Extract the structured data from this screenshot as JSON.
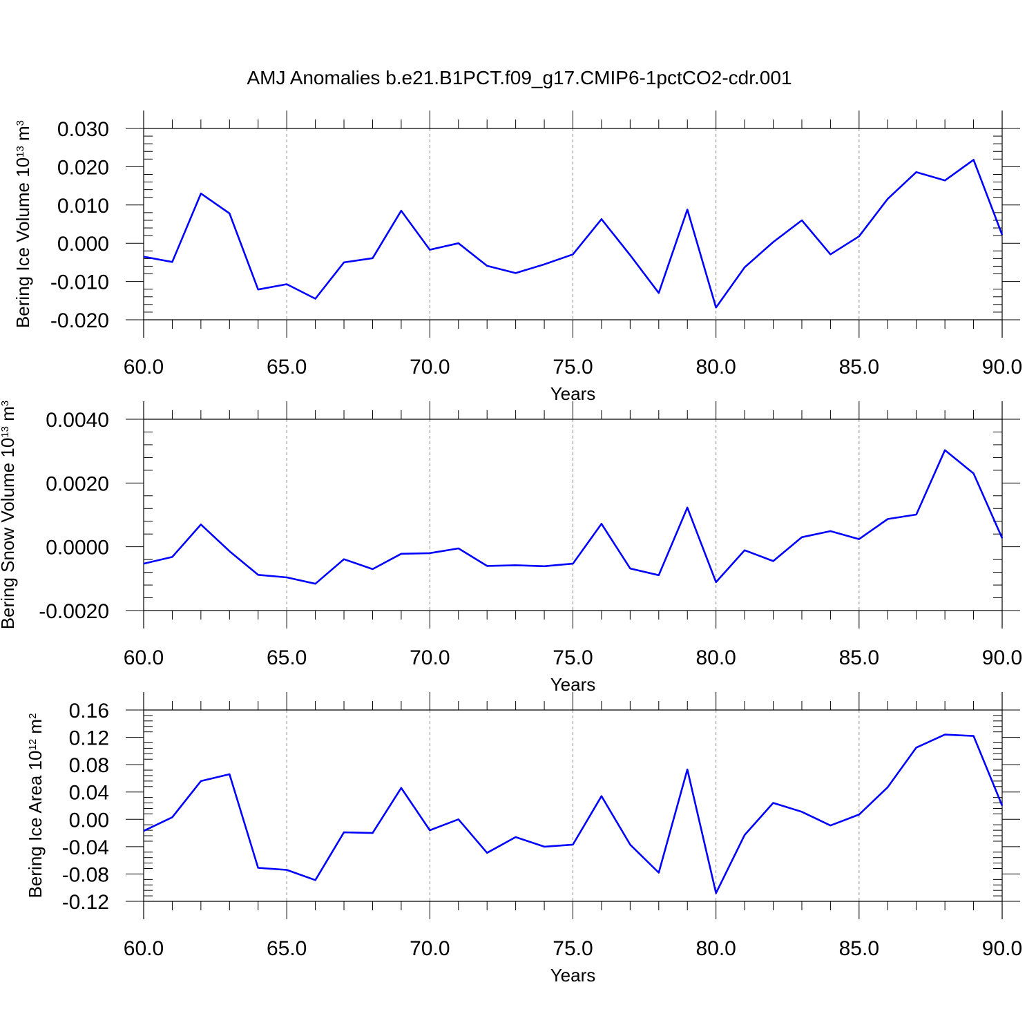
{
  "title": "AMJ Anomalies b.e21.B1PCT.f09_g17.CMIP6-1pctCO2-cdr.001",
  "line_color": "#0000ff",
  "chart_data": [
    {
      "type": "line",
      "xlabel": "Years",
      "ylabel": "Bering Ice Volume 10",
      "ylabel_exp": "13",
      "ylabel_unit": " m",
      "ylabel_unit_exp": "3",
      "xlim": [
        60,
        90
      ],
      "ylim": [
        -0.02,
        0.03
      ],
      "xticks": [
        "60.0",
        "65.0",
        "70.0",
        "75.0",
        "80.0",
        "85.0",
        "90.0"
      ],
      "yticks": [
        "0.030",
        "0.020",
        "0.010",
        "0.000",
        "-0.010",
        "-0.020"
      ],
      "grid": "vertical dashed at major x ticks",
      "x": [
        60,
        61,
        62,
        63,
        64,
        65,
        66,
        67,
        68,
        69,
        70,
        71,
        72,
        73,
        74,
        75,
        76,
        77,
        78,
        79,
        80,
        81,
        82,
        83,
        84,
        85,
        86,
        87,
        88,
        89,
        90
      ],
      "y": [
        -0.0035,
        -0.0049,
        0.013,
        0.0078,
        -0.0121,
        -0.0107,
        -0.0145,
        -0.005,
        -0.0039,
        0.0085,
        -0.0017,
        0.0,
        -0.0059,
        -0.0078,
        -0.0055,
        -0.0029,
        0.0063,
        -0.0031,
        -0.013,
        0.0088,
        -0.0168,
        -0.0063,
        0.0003,
        0.006,
        -0.0029,
        0.0018,
        0.0116,
        0.0186,
        0.0164,
        0.0218,
        0.0022
      ]
    },
    {
      "type": "line",
      "xlabel": "Years",
      "ylabel": "Bering Snow Volume 10",
      "ylabel_exp": "13",
      "ylabel_unit": " m",
      "ylabel_unit_exp": "3",
      "xlim": [
        60,
        90
      ],
      "ylim": [
        -0.002,
        0.004
      ],
      "xticks": [
        "60.0",
        "65.0",
        "70.0",
        "75.0",
        "80.0",
        "85.0",
        "90.0"
      ],
      "yticks": [
        "0.0040",
        "0.0020",
        "0.0000",
        "-0.0020"
      ],
      "grid": "vertical dashed at major x ticks",
      "x": [
        60,
        61,
        62,
        63,
        64,
        65,
        66,
        67,
        68,
        69,
        70,
        71,
        72,
        73,
        74,
        75,
        76,
        77,
        78,
        79,
        80,
        81,
        82,
        83,
        84,
        85,
        86,
        87,
        88,
        89,
        90
      ],
      "y": [
        -0.00053,
        -0.00032,
        0.0007,
        -0.00014,
        -0.00088,
        -0.00096,
        -0.00116,
        -0.00039,
        -0.0007,
        -0.00022,
        -0.0002,
        -5e-05,
        -0.0006,
        -0.00058,
        -0.00061,
        -0.00053,
        0.00072,
        -0.00068,
        -0.00089,
        0.00123,
        -0.00111,
        -0.00011,
        -0.00045,
        0.0003,
        0.00049,
        0.00024,
        0.00087,
        0.00101,
        0.00303,
        0.0023,
        0.00027
      ]
    },
    {
      "type": "line",
      "xlabel": "Years",
      "ylabel": "Bering Ice Area 10",
      "ylabel_exp": "12",
      "ylabel_unit": " m",
      "ylabel_unit_exp": "2",
      "xlim": [
        60,
        90
      ],
      "ylim": [
        -0.12,
        0.16
      ],
      "xticks": [
        "60.0",
        "65.0",
        "70.0",
        "75.0",
        "80.0",
        "85.0",
        "90.0"
      ],
      "yticks": [
        "0.16",
        "0.12",
        "0.08",
        "0.04",
        "0.00",
        "-0.04",
        "-0.08",
        "-0.12"
      ],
      "grid": "vertical dashed at major x ticks",
      "x": [
        60,
        61,
        62,
        63,
        64,
        65,
        66,
        67,
        68,
        69,
        70,
        71,
        72,
        73,
        74,
        75,
        76,
        77,
        78,
        79,
        80,
        81,
        82,
        83,
        84,
        85,
        86,
        87,
        88,
        89,
        90
      ],
      "y": [
        -0.017,
        0.003,
        0.056,
        0.066,
        -0.071,
        -0.074,
        -0.089,
        -0.019,
        -0.02,
        0.046,
        -0.016,
        0.0,
        -0.049,
        -0.026,
        -0.04,
        -0.037,
        0.034,
        -0.037,
        -0.078,
        0.073,
        -0.108,
        -0.023,
        0.024,
        0.011,
        -0.009,
        0.007,
        0.047,
        0.105,
        0.124,
        0.122,
        0.02
      ]
    }
  ]
}
